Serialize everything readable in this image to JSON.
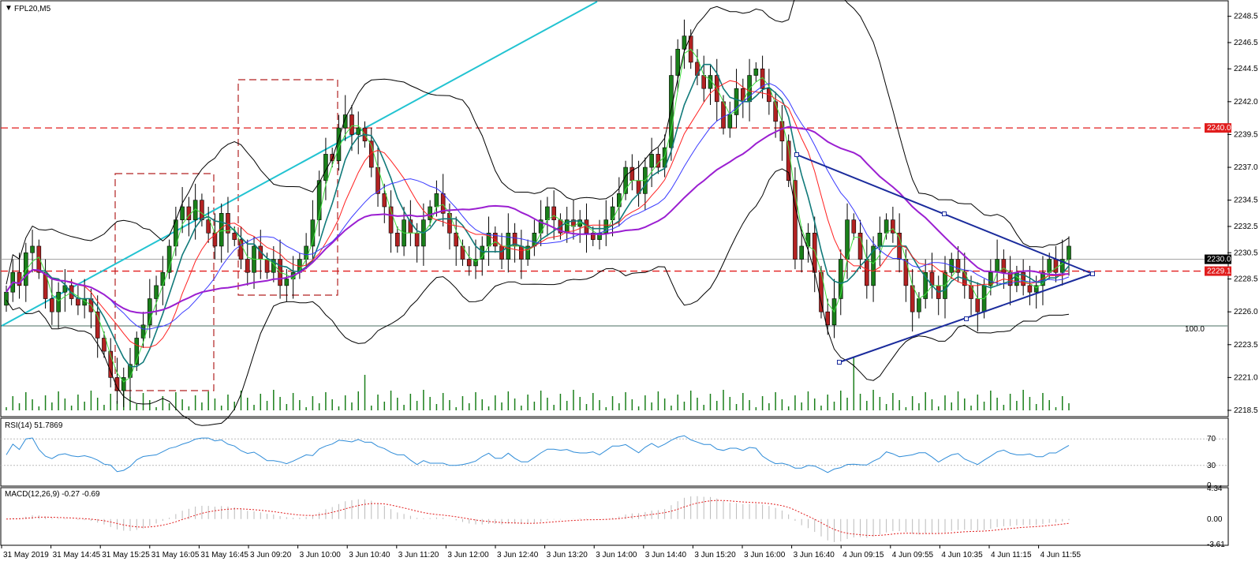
{
  "symbol_timeframe": "FPL20,M5",
  "rsi_label": "RSI(14) 51.7869",
  "macd_label": "MACD(12,26,9) -0.27 -0.69",
  "fib_label": "100.0",
  "price_axis": [
    "2248.5",
    "2246.5",
    "2244.5",
    "2242.0",
    "2239.5",
    "2237.0",
    "2234.5",
    "2232.5",
    "2230.5",
    "2228.5",
    "2226.0",
    "2223.5",
    "2221.0",
    "2218.5"
  ],
  "horizontal_levels": [
    {
      "label": "2240.0",
      "color": "#e11d1d"
    },
    {
      "label": "2229.1",
      "color": "#e11d1d"
    }
  ],
  "current_price": "2230.0",
  "rsi_axis": [
    "70",
    "30",
    "0"
  ],
  "macd_axis": [
    "4.34",
    "0.00",
    "-3.61"
  ],
  "time_axis": [
    "31 May 2019",
    "31 May 14:45",
    "31 May 15:25",
    "31 May 16:05",
    "31 May 16:45",
    "3 Jun 09:20",
    "3 Jun 10:00",
    "3 Jun 10:40",
    "3 Jun 11:20",
    "3 Jun 12:00",
    "3 Jun 12:40",
    "3 Jun 13:20",
    "3 Jun 14:00",
    "3 Jun 14:40",
    "3 Jun 15:20",
    "3 Jun 16:00",
    "3 Jun 16:40",
    "4 Jun 09:15",
    "4 Jun 09:55",
    "4 Jun 10:35",
    "4 Jun 11:15",
    "4 Jun 11:55"
  ],
  "colors": {
    "bull": "#1a7f1a",
    "bear": "#b22222",
    "trendline": "#22c3d1",
    "triangle": "#1a2b9c",
    "bollinger": "#000000",
    "ma_purple": "#9b1fd1",
    "ma_blue": "#3a3aff",
    "ma_red": "#ff2020",
    "ma_teal": "#117a7a",
    "ma_green": "#40e040",
    "rsi_line": "#2f8cd8",
    "macd_signal": "#e11d1d"
  },
  "chart_data": {
    "type": "candlestick",
    "price_range": [
      2218.5,
      2249.5
    ],
    "closes": [
      2227.5,
      2229,
      2228,
      2230.5,
      2231,
      2229,
      2227,
      2226,
      2227.5,
      2228,
      2227,
      2226.5,
      2227,
      2226,
      2224,
      2223,
      2221,
      2220,
      2221,
      2222,
      2224,
      2225,
      2227,
      2228,
      2229,
      2231,
      2233,
      2234,
      2233,
      2234.5,
      2233,
      2232,
      2231,
      2233.5,
      2232,
      2231.5,
      2230,
      2229,
      2231,
      2230,
      2229,
      2230,
      2228,
      2228.5,
      2229,
      2230,
      2231,
      2233,
      2236,
      2238,
      2237.5,
      2240,
      2241,
      2239.5,
      2240,
      2239,
      2237,
      2235,
      2234,
      2232,
      2231,
      2233,
      2232,
      2231,
      2233,
      2234,
      2235,
      2233.5,
      2232,
      2231,
      2230,
      2229.5,
      2230,
      2231,
      2232,
      2231,
      2230,
      2232,
      2231,
      2230,
      2231,
      2232,
      2233,
      2234,
      2233,
      2232,
      2233,
      2232.5,
      2233,
      2232,
      2231.5,
      2232,
      2233,
      2234,
      2235,
      2237,
      2236,
      2235,
      2237,
      2238,
      2237,
      2238.5,
      2244,
      2246,
      2247,
      2245,
      2244,
      2243,
      2244,
      2242,
      2240,
      2241,
      2243,
      2242,
      2244,
      2244.5,
      2243,
      2242,
      2240.5,
      2239,
      2236,
      2230,
      2231,
      2232,
      2229,
      2226,
      2225,
      2227,
      2230,
      2233,
      2232,
      2230,
      2228,
      2231,
      2232,
      2233,
      2232,
      2230,
      2228,
      2226,
      2227,
      2229,
      2228,
      2227,
      2229,
      2230,
      2229,
      2228,
      2227,
      2226,
      2228,
      2229,
      2230,
      2229,
      2228,
      2229,
      2228,
      2227.5,
      2228,
      2229,
      2230,
      2229,
      2230,
      2231
    ],
    "rsi_levels": [
      70,
      30
    ],
    "macd_range": [
      -3.61,
      4.34
    ]
  }
}
